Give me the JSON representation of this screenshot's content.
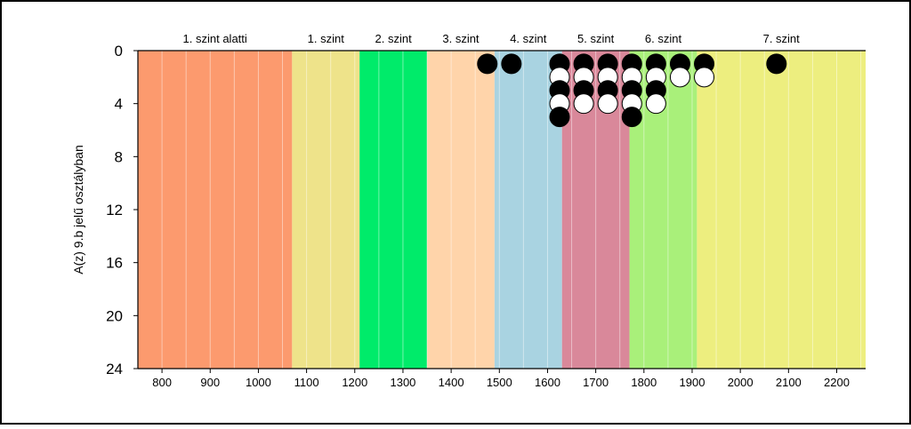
{
  "chart_data": {
    "type": "scatter",
    "title": "",
    "xlabel": "",
    "ylabel": "A(z) 9.b jelű osztályban",
    "xlim": [
      750,
      2260
    ],
    "ylim": [
      0,
      24
    ],
    "y_inverted": true,
    "x_ticks": [
      800,
      900,
      1000,
      1100,
      1200,
      1300,
      1400,
      1500,
      1600,
      1700,
      1800,
      1900,
      2000,
      2100,
      2200
    ],
    "x_tick_labels": [
      "800",
      "900",
      "1000",
      "1100",
      "1200",
      "1300",
      "1400",
      "1500",
      "1600",
      "1700",
      "1800",
      "1900",
      "2000",
      "2100",
      "2200"
    ],
    "y_ticks": [
      0,
      4,
      8,
      12,
      16,
      20,
      24
    ],
    "y_tick_labels": [
      "0",
      "4",
      "8",
      "12",
      "16",
      "20",
      "24"
    ],
    "grid": "vertical",
    "bands": [
      {
        "label": "1. szint alatti",
        "from": 750,
        "to": 1070,
        "color": "#FC9A6E"
      },
      {
        "label": "1. szint",
        "from": 1070,
        "to": 1210,
        "color": "#EEE38A"
      },
      {
        "label": "2. szint",
        "from": 1210,
        "to": 1350,
        "color": "#00EB6A"
      },
      {
        "label": "3. szint",
        "from": 1350,
        "to": 1490,
        "color": "#FFD4AA"
      },
      {
        "label": "4. szint",
        "from": 1490,
        "to": 1630,
        "color": "#A9D3E1"
      },
      {
        "label": "5. szint",
        "from": 1630,
        "to": 1770,
        "color": "#D9889A"
      },
      {
        "label": "6. szint",
        "from": 1770,
        "to": 1910,
        "color": "#A9F07A"
      },
      {
        "label": "7. szint",
        "from": 1910,
        "to": 2260,
        "color": "#EDEE7F"
      }
    ],
    "columns": [
      {
        "x": 1475,
        "markers": [
          "black"
        ]
      },
      {
        "x": 1525,
        "markers": [
          "black"
        ]
      },
      {
        "x": 1625,
        "markers": [
          "black",
          "white",
          "black",
          "white",
          "black"
        ]
      },
      {
        "x": 1675,
        "markers": [
          "black",
          "white",
          "black",
          "white"
        ]
      },
      {
        "x": 1725,
        "markers": [
          "black",
          "white",
          "black",
          "white"
        ]
      },
      {
        "x": 1775,
        "markers": [
          "black",
          "white",
          "black",
          "white",
          "black"
        ]
      },
      {
        "x": 1825,
        "markers": [
          "black",
          "white",
          "black",
          "white"
        ]
      },
      {
        "x": 1875,
        "markers": [
          "black",
          "white"
        ]
      },
      {
        "x": 1925,
        "markers": [
          "black",
          "white"
        ]
      },
      {
        "x": 2075,
        "markers": [
          "black"
        ]
      }
    ],
    "marker_colors": {
      "black": "#000000",
      "white": "#ffffff"
    }
  }
}
